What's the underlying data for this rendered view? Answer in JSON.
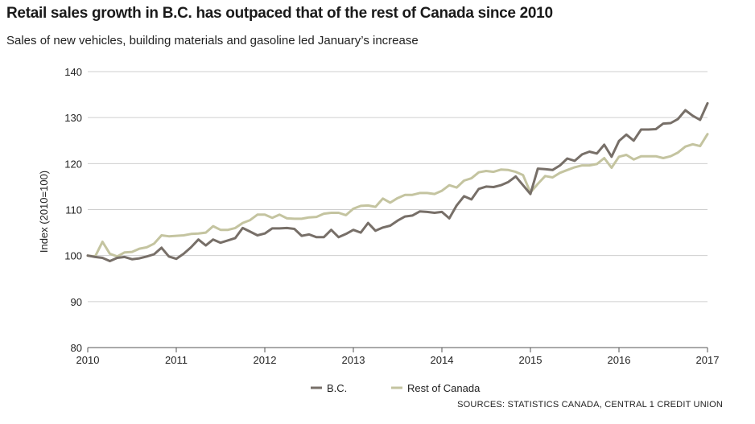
{
  "title": "Retail sales growth in B.C. has outpaced that of the rest of Canada since 2010",
  "subtitle": "Sales of new vehicles, building materials and gasoline led January’s increase",
  "source": "SOURCES: STATISTICS CANADA, CENTRAL 1 CREDIT UNION",
  "colors": {
    "bc": "#776f68",
    "roc": "#c4c4a0",
    "grid": "#cfcfcf",
    "axis": "#555555"
  },
  "chart_data": {
    "type": "line",
    "title": "Retail sales growth in B.C. has outpaced that of the rest of Canada since 2010",
    "xlabel": "",
    "ylabel": "Index (2010=100)",
    "ylim": [
      80,
      140
    ],
    "yticks": [
      80,
      90,
      100,
      110,
      120,
      130,
      140
    ],
    "xlim": [
      2010,
      2017
    ],
    "xticks": [
      "2010",
      "2011",
      "2012",
      "2013",
      "2014",
      "2015",
      "2016",
      "2017"
    ],
    "grid": true,
    "legend": "bottom",
    "x_start": 2010,
    "x_step": 0.08333,
    "series": [
      {
        "name": "B.C.",
        "values": [
          100,
          99.7,
          99.5,
          98.8,
          99.5,
          99.7,
          99.2,
          99.4,
          99.8,
          100.3,
          101.7,
          99.8,
          99.3,
          100.4,
          101.8,
          103.5,
          102.2,
          103.5,
          102.8,
          103.3,
          103.8,
          106,
          105.2,
          104.4,
          104.8,
          105.9,
          105.9,
          106,
          105.8,
          104.3,
          104.6,
          104,
          104,
          105.6,
          104,
          104.7,
          105.6,
          105,
          107.1,
          105.4,
          106.1,
          106.5,
          107.6,
          108.5,
          108.7,
          109.6,
          109.5,
          109.3,
          109.5,
          108.1,
          110.9,
          112.9,
          112.2,
          114.5,
          115,
          114.9,
          115.3,
          116,
          117.2,
          115.3,
          113.4,
          118.9,
          118.8,
          118.6,
          119.6,
          121.1,
          120.6,
          122,
          122.6,
          122.2,
          124.1,
          121.5,
          124.9,
          126.3,
          125,
          127.4,
          127.4,
          127.5,
          128.7,
          128.8,
          129.7,
          131.6,
          130.4,
          129.5,
          133.1
        ]
      },
      {
        "name": "Rest of Canada",
        "values": [
          100,
          99.8,
          103,
          100.4,
          99.8,
          100.7,
          100.8,
          101.5,
          101.8,
          102.6,
          104.4,
          104.2,
          104.3,
          104.4,
          104.7,
          104.8,
          105,
          106.4,
          105.6,
          105.6,
          106,
          107.1,
          107.7,
          108.9,
          108.9,
          108.2,
          108.9,
          108.1,
          108,
          108,
          108.3,
          108.4,
          109.1,
          109.3,
          109.3,
          108.8,
          110.2,
          110.8,
          110.9,
          110.6,
          112.4,
          111.5,
          112.5,
          113.2,
          113.2,
          113.6,
          113.6,
          113.4,
          114.1,
          115.3,
          114.8,
          116.3,
          116.8,
          118.1,
          118.4,
          118.2,
          118.7,
          118.6,
          118.2,
          117.5,
          113.7,
          115.6,
          117.3,
          117,
          118,
          118.6,
          119.2,
          119.6,
          119.6,
          119.9,
          121.2,
          119.1,
          121.5,
          121.9,
          120.9,
          121.6,
          121.6,
          121.6,
          121.2,
          121.6,
          122.4,
          123.7,
          124.2,
          123.8,
          126.4
        ]
      }
    ]
  }
}
